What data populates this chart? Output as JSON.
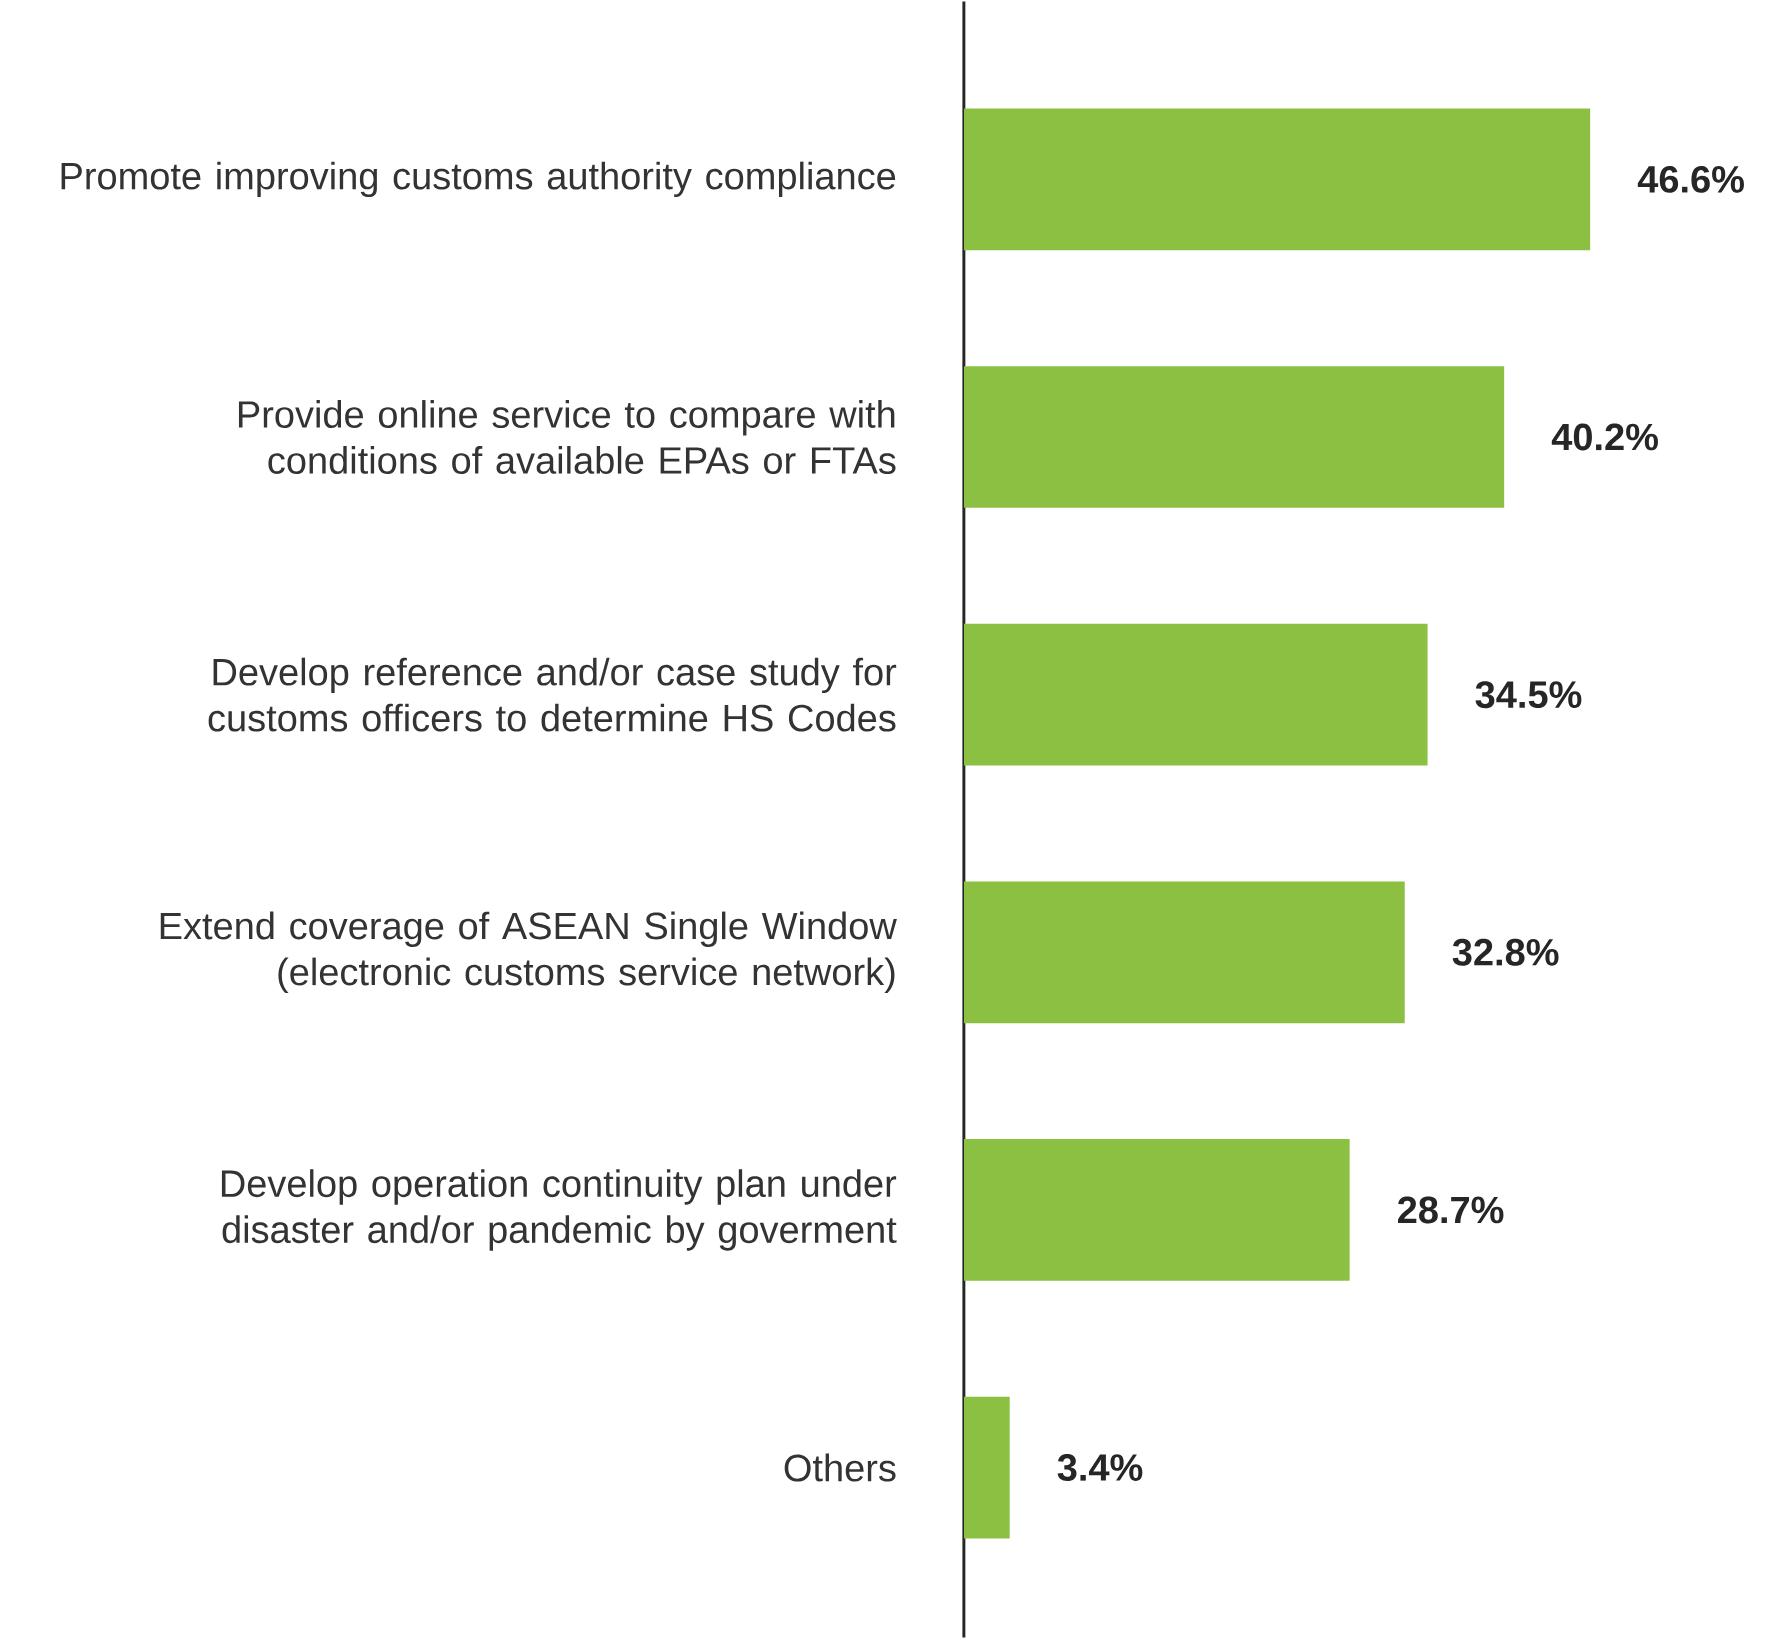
{
  "chart_data": {
    "type": "bar",
    "orientation": "horizontal",
    "categories": [
      "Promote improving customs authority compliance",
      "Provide online service to compare with conditions of available EPAs or FTAs",
      "Develop reference and/or case study for customs officers to determine HS Codes",
      "Extend coverage of ASEAN Single Window (electronic customs service network)",
      "Develop operation continuity plan under disaster and/or pandemic by goverment",
      "Others"
    ],
    "values": [
      46.6,
      40.2,
      34.5,
      32.8,
      28.7,
      3.4
    ],
    "value_labels": [
      "46.6%",
      "40.2%",
      "34.5%",
      "32.8%",
      "28.7%",
      "3.4%"
    ],
    "color": "#8bc043"
  }
}
